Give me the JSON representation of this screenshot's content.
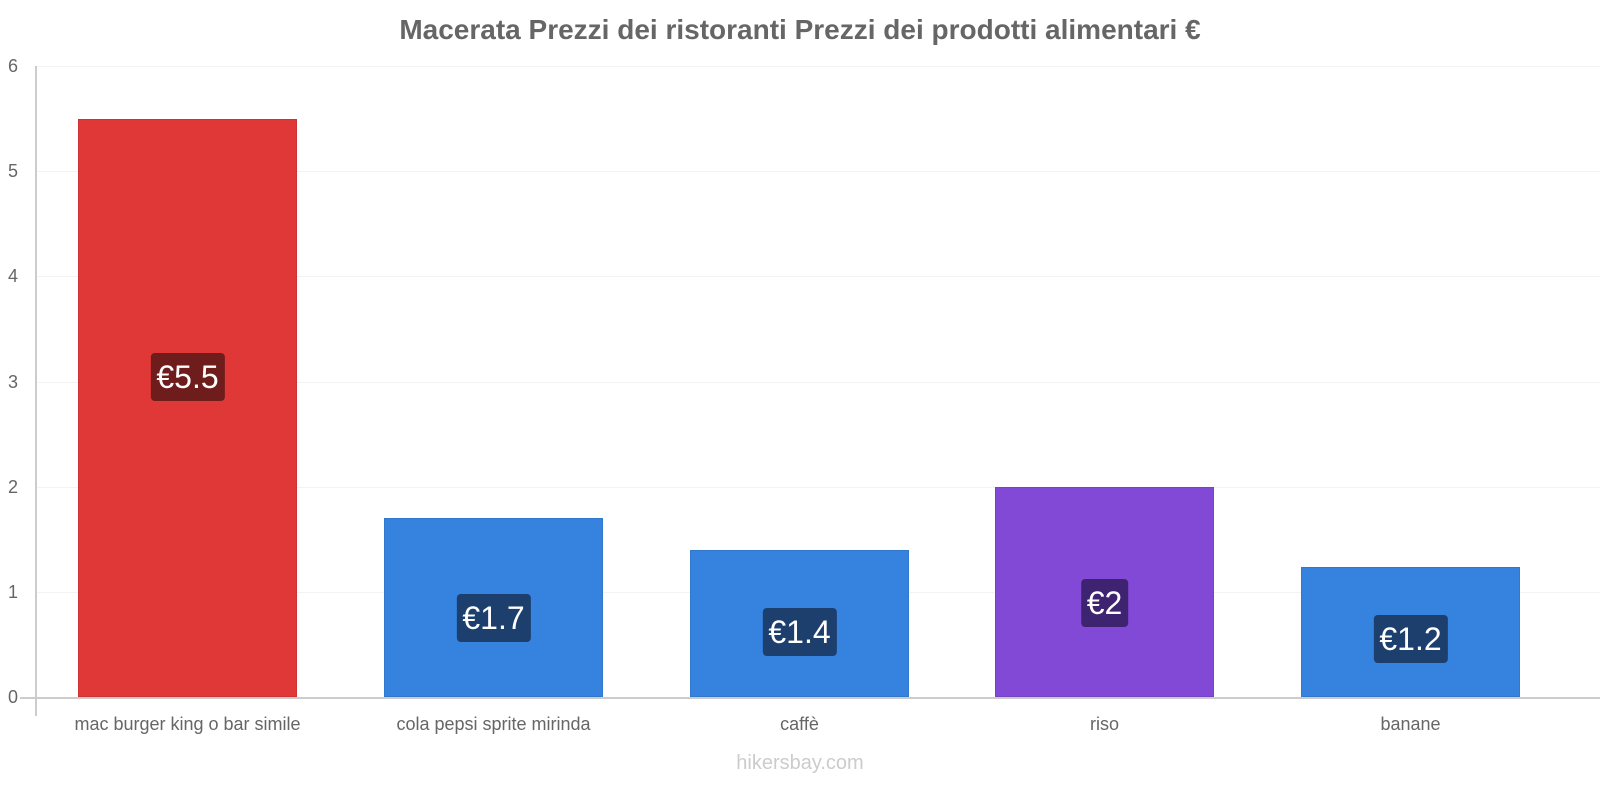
{
  "chart_data": {
    "type": "bar",
    "title": "Macerata Prezzi dei ristoranti Prezzi dei prodotti alimentari €",
    "categories": [
      "mac burger king o bar simile",
      "cola pepsi sprite mirinda",
      "caffè",
      "riso",
      "banane"
    ],
    "values": [
      5.5,
      1.7,
      1.4,
      2.0,
      1.24
    ],
    "value_labels": [
      "€5.5",
      "€1.7",
      "€1.4",
      "€2",
      "€1.2"
    ],
    "bar_colors": [
      "#e03737",
      "#3583de",
      "#3583de",
      "#8249d6",
      "#3583de"
    ],
    "label_bg_colors": [
      "#6e1c1c",
      "#1c3f6e",
      "#1c3f6e",
      "#3e2470",
      "#1c3f6e"
    ],
    "xlabel": "",
    "ylabel": "",
    "ylim": [
      0,
      6
    ],
    "yticks": [
      "0",
      "1",
      "2",
      "3",
      "4",
      "5",
      "6"
    ],
    "grid": true,
    "legend": "none"
  },
  "footer": {
    "watermark": "hikersbay.com"
  }
}
